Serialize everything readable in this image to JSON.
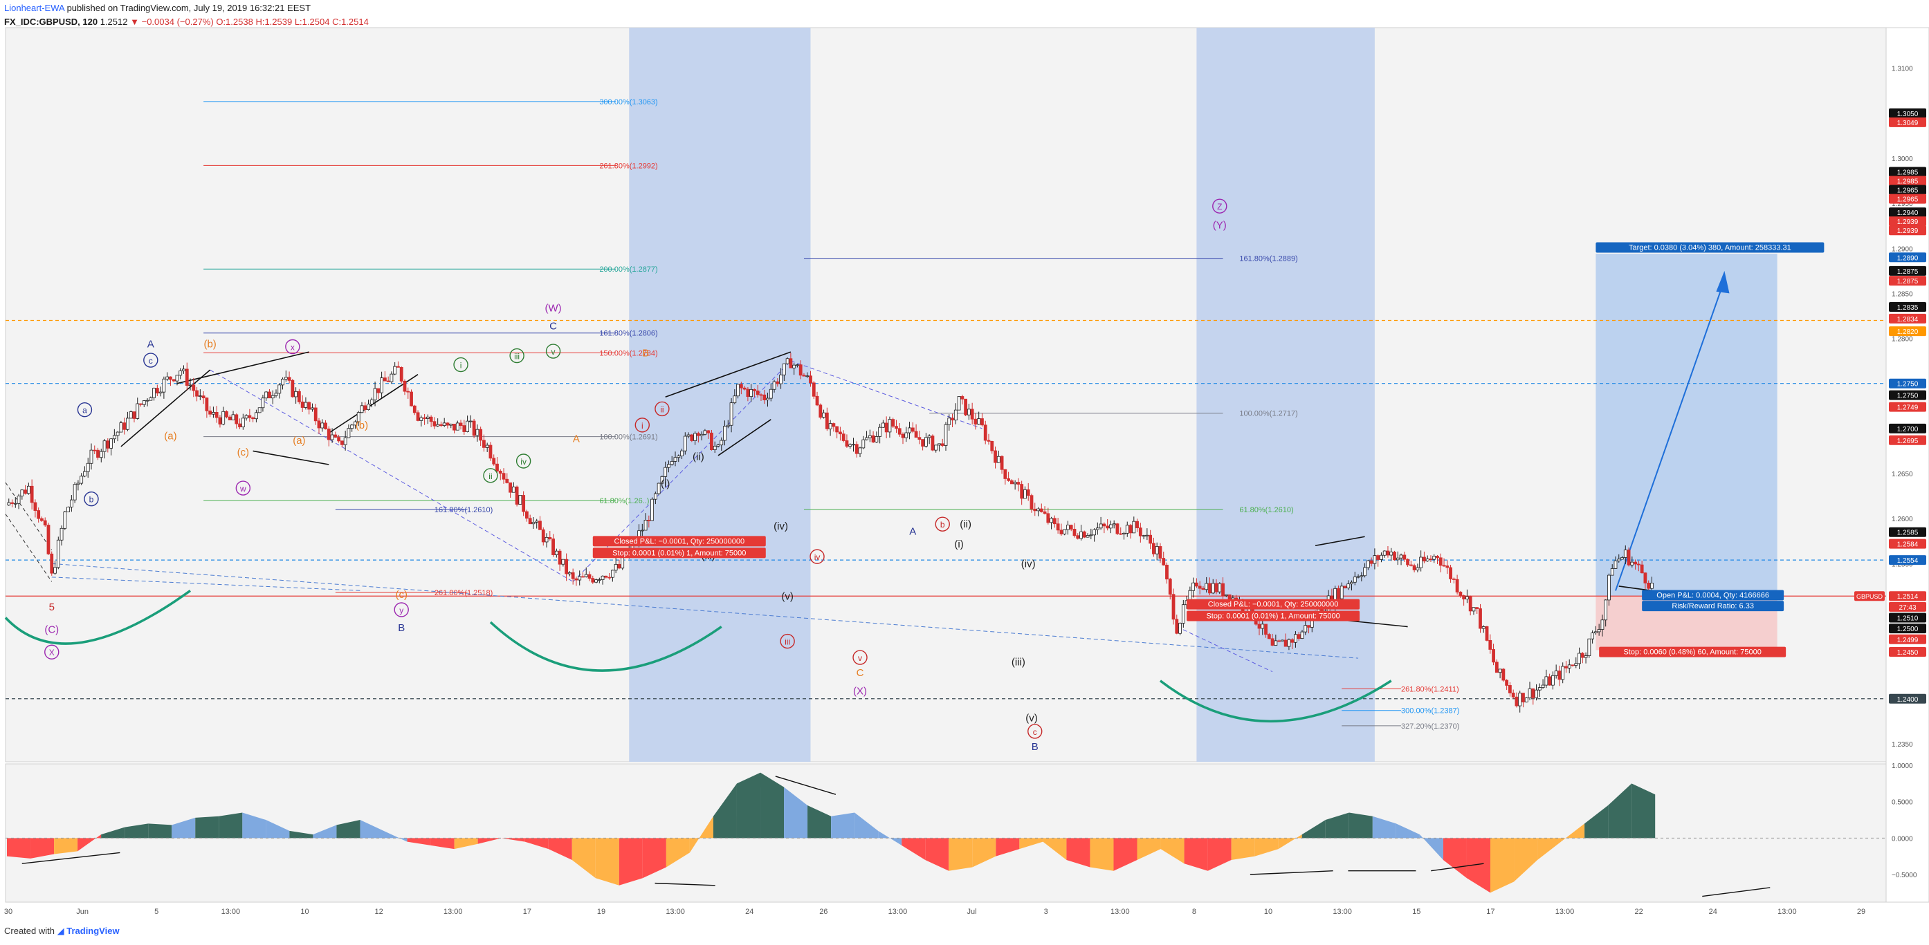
{
  "header": {
    "author": "Lionheart-EWA",
    "published": "published on TradingView.com, July 19, 2019 16:32:21 EEST",
    "symbol": "FX_IDC:GBPUSD, 120",
    "last": "1.2512",
    "change": "−0.0034 (−0.27%)",
    "o": "O:1.2538",
    "h": "H:1.2539",
    "l": "L:1.2504",
    "c": "C:1.2514"
  },
  "footer": {
    "created": "Created with",
    "brand": "TradingView"
  },
  "colors": {
    "bull_candle": "#1e1e1e",
    "bear_candle": "#d32f2f",
    "zone_blue": "#c5d4ee",
    "target_zone": "#bcd2ef",
    "stop_zone": "#f5cfcf",
    "osc_green": "#3a6a5e",
    "osc_blue": "#7fa9e0",
    "osc_red": "#ff4d4d",
    "osc_orange": "#ffb347",
    "teal_arc": "#1a9e7a",
    "purple": "#9c27b0",
    "navy": "#283593"
  },
  "chart_data": [
    {
      "type": "candlestick",
      "symbol": "GBPUSD",
      "timeframe": "120",
      "x_tick_labels": [
        "30",
        "Jun",
        "5",
        "13:00",
        "10",
        "12",
        "13:00",
        "17",
        "19",
        "13:00",
        "24",
        "26",
        "13:00",
        "Jul",
        "3",
        "13:00",
        "8",
        "10",
        "13:00",
        "15",
        "17",
        "13:00",
        "22",
        "24",
        "13:00",
        "29"
      ],
      "y_tick_labels": [
        "1.3100",
        "1.3050",
        "1.3000",
        "1.2950",
        "1.2900",
        "1.2850",
        "1.2800",
        "1.2750",
        "1.2700",
        "1.2650",
        "1.2600",
        "1.2550",
        "1.2500",
        "1.2450",
        "1.2400",
        "1.2350"
      ],
      "ylim": [
        1.233,
        1.3145
      ],
      "price_path": [
        [
          0,
          1.2615
        ],
        [
          0.7,
          1.2635
        ],
        [
          1.2,
          1.2585
        ],
        [
          1.4,
          1.2535
        ],
        [
          1.8,
          1.2605
        ],
        [
          2.5,
          1.2665
        ],
        [
          3.5,
          1.27
        ],
        [
          4.4,
          1.274
        ],
        [
          5.3,
          1.2765
        ],
        [
          6.2,
          1.2715
        ],
        [
          7.2,
          1.2705
        ],
        [
          8.4,
          1.2755
        ],
        [
          9.2,
          1.272
        ],
        [
          10.1,
          1.268
        ],
        [
          11.0,
          1.2735
        ],
        [
          11.9,
          1.2765
        ],
        [
          12.5,
          1.2715
        ],
        [
          13.4,
          1.27
        ],
        [
          14.0,
          1.2705
        ],
        [
          14.6,
          1.268
        ],
        [
          15.3,
          1.2635
        ],
        [
          16.0,
          1.2595
        ],
        [
          16.6,
          1.2565
        ],
        [
          17.2,
          1.253
        ],
        [
          17.8,
          1.2535
        ],
        [
          18.6,
          1.2545
        ],
        [
          19.4,
          1.2595
        ],
        [
          20.2,
          1.267
        ],
        [
          21.0,
          1.27
        ],
        [
          21.6,
          1.2675
        ],
        [
          22.2,
          1.2745
        ],
        [
          23.0,
          1.2735
        ],
        [
          23.8,
          1.2775
        ],
        [
          24.4,
          1.275
        ],
        [
          24.9,
          1.27
        ],
        [
          25.8,
          1.268
        ],
        [
          26.8,
          1.2705
        ],
        [
          27.6,
          1.269
        ],
        [
          28.3,
          1.268
        ],
        [
          28.9,
          1.273
        ],
        [
          29.6,
          1.27
        ],
        [
          30.2,
          1.2655
        ],
        [
          31.0,
          1.262
        ],
        [
          31.8,
          1.259
        ],
        [
          32.6,
          1.2585
        ],
        [
          33.4,
          1.259
        ],
        [
          34.3,
          1.259
        ],
        [
          35.0,
          1.256
        ],
        [
          35.5,
          1.248
        ],
        [
          36.1,
          1.253
        ],
        [
          36.9,
          1.252
        ],
        [
          37.8,
          1.2495
        ],
        [
          38.4,
          1.2455
        ],
        [
          39.2,
          1.247
        ],
        [
          40.0,
          1.2505
        ],
        [
          41.0,
          1.254
        ],
        [
          41.9,
          1.2565
        ],
        [
          42.7,
          1.2545
        ],
        [
          43.4,
          1.256
        ],
        [
          44.0,
          1.2525
        ],
        [
          44.6,
          1.2495
        ],
        [
          45.2,
          1.243
        ],
        [
          45.8,
          1.24
        ],
        [
          46.4,
          1.241
        ],
        [
          47.2,
          1.243
        ],
        [
          47.9,
          1.2455
        ],
        [
          48.4,
          1.249
        ],
        [
          48.7,
          1.255
        ],
        [
          49.1,
          1.256
        ],
        [
          49.6,
          1.254
        ],
        [
          50.0,
          1.252
        ]
      ],
      "x_domain": [
        0,
        57
      ],
      "fib_levels": [
        {
          "label": "300.00%(1.3063)",
          "price": 1.3063,
          "color": "#2196f3"
        },
        {
          "label": "261.80%(1.2992)",
          "price": 1.2992,
          "color": "#e53935"
        },
        {
          "label": "200.00%(1.2877)",
          "price": 1.2877,
          "color": "#26a69a"
        },
        {
          "label": "161.80%(1.2806)",
          "price": 1.2806,
          "color": "#3949ab"
        },
        {
          "label": "150.00%(1.2784)",
          "price": 1.2784,
          "color": "#e53935"
        },
        {
          "label": "100.00%(1.2691)",
          "price": 1.2691,
          "color": "#787b86"
        },
        {
          "label": "61.80%(1.26..)",
          "price": 1.262,
          "color": "#4caf50"
        },
        {
          "label": "161.80%(1.2610)",
          "price": 1.261,
          "color": "#3949ab"
        },
        {
          "label": "261.80%(1.2518)",
          "price": 1.2518,
          "color": "#e53935"
        },
        {
          "label": "161.80%(1.2889)",
          "price": 1.2889,
          "color": "#3949ab"
        },
        {
          "label": "100.00%(1.2717)",
          "price": 1.2717,
          "color": "#787b86"
        },
        {
          "label": "61.80%(1.2610)",
          "price": 1.261,
          "color": "#4caf50"
        },
        {
          "label": "261.80%(1.2411)",
          "price": 1.2411,
          "color": "#e53935"
        },
        {
          "label": "300.00%(1.2387)",
          "price": 1.2387,
          "color": "#2196f3"
        },
        {
          "label": "327.20%(1.2370)",
          "price": 1.237,
          "color": "#787b86"
        }
      ],
      "horizontal_lines": [
        {
          "price": 1.282,
          "color": "#ff9800",
          "style": "dashed"
        },
        {
          "price": 1.275,
          "color": "#1e88e5",
          "style": "dashed"
        },
        {
          "price": 1.2554,
          "color": "#1e88e5",
          "style": "dashed"
        },
        {
          "price": 1.2514,
          "color": "#e53935",
          "style": "solid"
        },
        {
          "price": 1.24,
          "color": "#37474f",
          "style": "dashed"
        }
      ],
      "wave_labels": [
        {
          "text": "5",
          "color": "#c62828"
        },
        {
          "text": "(C)",
          "color": "#9c27b0"
        },
        {
          "text": "X",
          "color": "#9c27b0",
          "circled": true
        },
        {
          "text": "A",
          "color": "#283593"
        },
        {
          "text": "c",
          "color": "#283593",
          "circled": true
        },
        {
          "text": "a",
          "color": "#283593",
          "circled": true
        },
        {
          "text": "b",
          "color": "#283593",
          "circled": true
        },
        {
          "text": "(b)",
          "color": "#e67e22"
        },
        {
          "text": "(a)",
          "color": "#e67e22"
        },
        {
          "text": "(c)",
          "color": "#e67e22"
        },
        {
          "text": "x",
          "color": "#9c27b0",
          "circled": true
        },
        {
          "text": "w",
          "color": "#9c27b0",
          "circled": true
        },
        {
          "text": "(a)",
          "color": "#e67e22"
        },
        {
          "text": "(b)",
          "color": "#e67e22"
        },
        {
          "text": "(c)",
          "color": "#e67e22"
        },
        {
          "text": "y",
          "color": "#9c27b0",
          "circled": true
        },
        {
          "text": "B",
          "color": "#283593"
        },
        {
          "text": "i",
          "color": "#2e7d32",
          "circled": true
        },
        {
          "text": "ii",
          "color": "#2e7d32",
          "circled": true
        },
        {
          "text": "iii",
          "color": "#2e7d32",
          "circled": true
        },
        {
          "text": "iv",
          "color": "#2e7d32",
          "circled": true
        },
        {
          "text": "v",
          "color": "#2e7d32",
          "circled": true
        },
        {
          "text": "(W)",
          "color": "#9c27b0"
        },
        {
          "text": "C",
          "color": "#283593"
        },
        {
          "text": "B",
          "color": "#e67e22"
        },
        {
          "text": "A",
          "color": "#e67e22"
        },
        {
          "text": "ii",
          "color": "#c62828",
          "circled": true
        },
        {
          "text": "i",
          "color": "#c62828",
          "circled": true
        },
        {
          "text": "(ii)",
          "color": "#1e1e1e"
        },
        {
          "text": "(i)",
          "color": "#1e1e1e"
        },
        {
          "text": "(iii)",
          "color": "#1e1e1e"
        },
        {
          "text": "(iv)",
          "color": "#1e1e1e"
        },
        {
          "text": "(v)",
          "color": "#1e1e1e"
        },
        {
          "text": "iii",
          "color": "#c62828",
          "circled": true
        },
        {
          "text": "iv",
          "color": "#c62828",
          "circled": true
        },
        {
          "text": "v",
          "color": "#c62828",
          "circled": true
        },
        {
          "text": "C",
          "color": "#e67e22"
        },
        {
          "text": "(X)",
          "color": "#9c27b0"
        },
        {
          "text": "A",
          "color": "#283593"
        },
        {
          "text": "b",
          "color": "#c62828",
          "circled": true
        },
        {
          "text": "(ii)",
          "color": "#1e1e1e"
        },
        {
          "text": "(i)",
          "color": "#1e1e1e"
        },
        {
          "text": "(iv)",
          "color": "#1e1e1e"
        },
        {
          "text": "(iii)",
          "color": "#1e1e1e"
        },
        {
          "text": "(v)",
          "color": "#1e1e1e"
        },
        {
          "text": "c",
          "color": "#c62828",
          "circled": true
        },
        {
          "text": "B",
          "color": "#283593"
        },
        {
          "text": "Z",
          "color": "#9c27b0",
          "circled": true
        },
        {
          "text": "(Y)",
          "color": "#9c27b0"
        }
      ],
      "position_labels": [
        {
          "text": "Closed P&L: −0.0001, Qty: 250000000",
          "bg": "#e53935"
        },
        {
          "text": "Stop: 0.0001 (0.01%) 1, Amount: 75000",
          "bg": "#e53935"
        },
        {
          "text": "Closed P&L: −0.0001, Qty: 250000000",
          "bg": "#e53935"
        },
        {
          "text": "Stop: 0.0001 (0.01%) 1, Amount: 75000",
          "bg": "#e53935"
        },
        {
          "text": "Target: 0.0380 (3.04%) 380, Amount: 258333.31",
          "bg": "#1565c0"
        },
        {
          "text": "Open P&L: 0.0004, Qty: 4166666",
          "bg": "#1565c0"
        },
        {
          "text": "Risk/Reward Ratio: 6.33",
          "bg": "#1565c0"
        },
        {
          "text": "Stop: 0.0060 (0.48%) 60, Amount: 75000",
          "bg": "#e53935"
        }
      ],
      "price_scale_badges": [
        {
          "text": "1.3050",
          "bg": "#111111"
        },
        {
          "text": "1.3049",
          "bg": "#e53935"
        },
        {
          "text": "1.2985",
          "bg": "#111111"
        },
        {
          "text": "1.2985",
          "bg": "#e53935"
        },
        {
          "text": "1.2965",
          "bg": "#111111"
        },
        {
          "text": "1.2965",
          "bg": "#e53935"
        },
        {
          "text": "1.2940",
          "bg": "#111111"
        },
        {
          "text": "1.2939",
          "bg": "#e53935"
        },
        {
          "text": "1.2939",
          "bg": "#e53935"
        },
        {
          "text": "1.2890",
          "bg": "#1565c0"
        },
        {
          "text": "1.2875",
          "bg": "#111111"
        },
        {
          "text": "1.2875",
          "bg": "#e53935"
        },
        {
          "text": "1.2835",
          "bg": "#111111"
        },
        {
          "text": "1.2834",
          "bg": "#e53935"
        },
        {
          "text": "1.2820",
          "bg": "#ff9800"
        },
        {
          "text": "1.2750",
          "bg": "#1565c0"
        },
        {
          "text": "1.2750",
          "bg": "#111111"
        },
        {
          "text": "1.2749",
          "bg": "#e53935"
        },
        {
          "text": "1.2700",
          "bg": "#111111"
        },
        {
          "text": "1.2695",
          "bg": "#e53935"
        },
        {
          "text": "1.2585",
          "bg": "#111111"
        },
        {
          "text": "1.2584",
          "bg": "#e53935"
        },
        {
          "text": "1.2554",
          "bg": "#1565c0"
        },
        {
          "text": "1.2514",
          "bg": "#e53935"
        },
        {
          "text": "27:43",
          "bg": "#e53935"
        },
        {
          "text": "1.2510",
          "bg": "#111111"
        },
        {
          "text": "1.2500",
          "bg": "#111111"
        },
        {
          "text": "1.2499",
          "bg": "#e53935"
        },
        {
          "text": "1.2450",
          "bg": "#e53935"
        },
        {
          "text": "1.2400",
          "bg": "#37474f"
        }
      ],
      "symbol_tag": "GBPUSD"
    },
    {
      "type": "area",
      "name": "oscillator",
      "y_tick_labels": [
        "1.0000",
        "0.5000",
        "0.0000",
        "−0.5000"
      ],
      "ylim": [
        -0.88,
        1.02
      ],
      "values": [
        -0.25,
        -0.28,
        -0.22,
        -0.18,
        0.05,
        0.15,
        0.2,
        0.18,
        0.28,
        0.3,
        0.35,
        0.25,
        0.1,
        0.05,
        0.18,
        0.25,
        0.1,
        -0.05,
        -0.1,
        -0.15,
        -0.08,
        0.0,
        -0.05,
        -0.15,
        -0.3,
        -0.55,
        -0.65,
        -0.55,
        -0.4,
        -0.2,
        0.3,
        0.75,
        0.9,
        0.7,
        0.45,
        0.3,
        0.35,
        0.1,
        -0.1,
        -0.3,
        -0.45,
        -0.4,
        -0.25,
        -0.15,
        -0.05,
        -0.3,
        -0.4,
        -0.45,
        -0.3,
        -0.15,
        -0.35,
        -0.45,
        -0.3,
        -0.25,
        -0.15,
        0.05,
        0.25,
        0.35,
        0.3,
        0.2,
        0.05,
        -0.3,
        -0.55,
        -0.75,
        -0.6,
        -0.3,
        -0.05,
        0.2,
        0.45,
        0.75,
        0.6
      ],
      "color_bands": [
        "red",
        "red",
        "orange",
        "red",
        "green",
        "green",
        "green",
        "blue",
        "green",
        "green",
        "blue",
        "blue",
        "green",
        "blue",
        "green",
        "blue",
        "blue",
        "red",
        "red",
        "orange",
        "red",
        "red",
        "red",
        "red",
        "orange",
        "orange",
        "red",
        "red",
        "orange",
        "orange",
        "green",
        "green",
        "green",
        "blue",
        "green",
        "blue",
        "blue",
        "blue",
        "red",
        "red",
        "orange",
        "orange",
        "red",
        "orange",
        "orange",
        "red",
        "orange",
        "red",
        "orange",
        "orange",
        "red",
        "red",
        "orange",
        "orange",
        "orange",
        "green",
        "green",
        "green",
        "blue",
        "blue",
        "blue",
        "red",
        "red",
        "orange",
        "orange",
        "orange",
        "orange",
        "green",
        "green",
        "green",
        "blue"
      ]
    }
  ]
}
